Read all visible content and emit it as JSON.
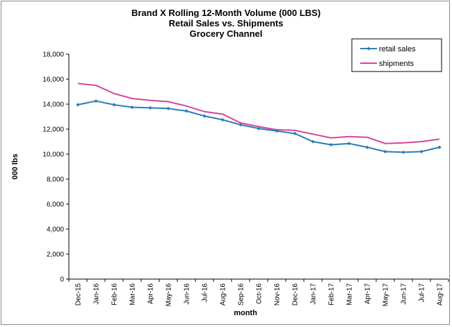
{
  "chart_data": {
    "type": "line",
    "title": [
      "Brand X Rolling 12-Month Volume (000 LBS)",
      "Retail Sales vs. Shipments",
      "Grocery Channel"
    ],
    "xlabel": "month",
    "ylabel": "000 lbs",
    "ylim": [
      0,
      18000
    ],
    "yticks": [
      "0",
      "2,000",
      "4,000",
      "6,000",
      "8,000",
      "10,000",
      "12,000",
      "14,000",
      "16,000",
      "18,000"
    ],
    "ytick_values": [
      0,
      2000,
      4000,
      6000,
      8000,
      10000,
      12000,
      14000,
      16000,
      18000
    ],
    "categories": [
      "Dec-15",
      "Jan-16",
      "Feb-16",
      "Mar-16",
      "Apr-16",
      "May-16",
      "Jun-16",
      "Jul-16",
      "Aug-16",
      "Sep-16",
      "Oct-16",
      "Nov-16",
      "Dec-16",
      "Jan-17",
      "Feb-17",
      "Mar-17",
      "Apr-17",
      "May-17",
      "Jun-17",
      "Jul-17",
      "Aug-17"
    ],
    "series": [
      {
        "name": "retail sales",
        "color": "#2b7bb9",
        "markers": true,
        "values": [
          13950,
          14250,
          13950,
          13750,
          13700,
          13650,
          13450,
          13050,
          12750,
          12350,
          12050,
          11850,
          11650,
          11000,
          10750,
          10850,
          10550,
          10200,
          10150,
          10200,
          10550
        ]
      },
      {
        "name": "shipments",
        "color": "#d6449c",
        "markers": false,
        "values": [
          15650,
          15500,
          14850,
          14450,
          14300,
          14200,
          13850,
          13400,
          13200,
          12500,
          12200,
          11950,
          11900,
          11600,
          11300,
          11400,
          11350,
          10850,
          10900,
          11000,
          11200
        ]
      }
    ],
    "grid": false,
    "legend_position": "top-right"
  }
}
